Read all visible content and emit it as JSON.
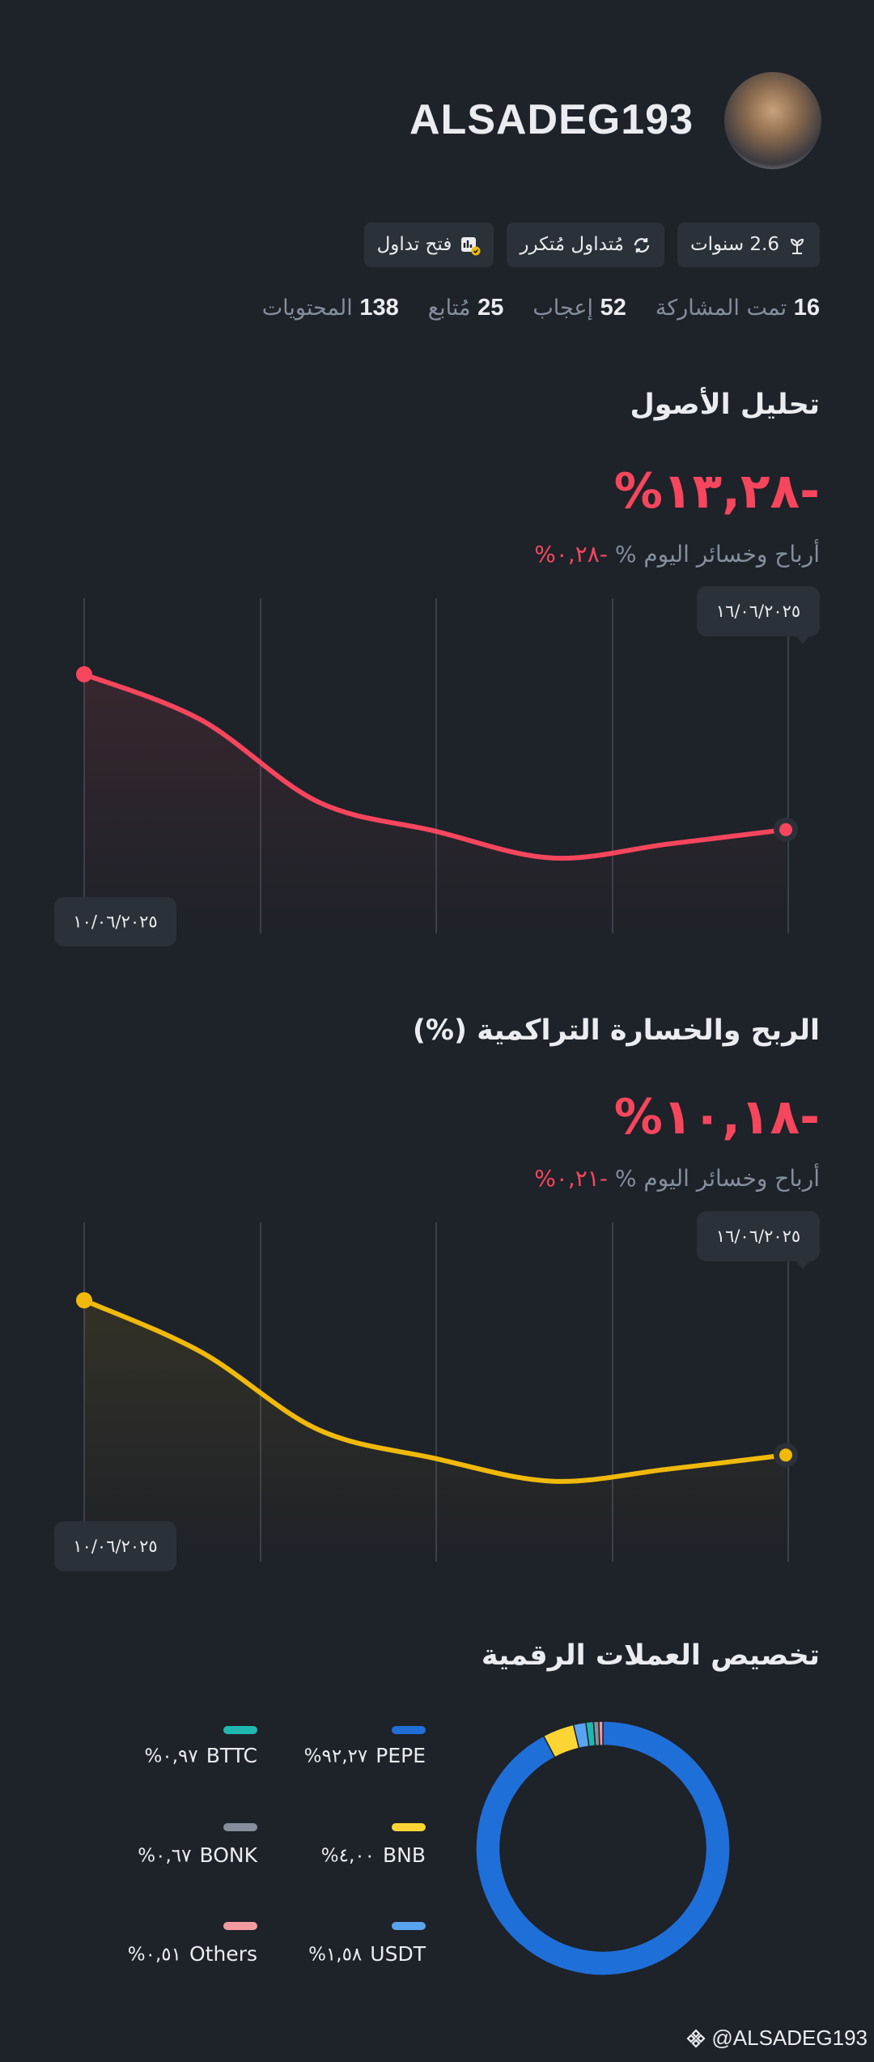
{
  "header": {
    "username": "ALSADEG193",
    "badges": [
      "2.6 سنوات",
      "مُتداول مُتكرر",
      "فتح تداول"
    ],
    "stats": [
      {
        "value": 16,
        "label": "تمت المشاركة"
      },
      {
        "value": 52,
        "label": "إعجاب"
      },
      {
        "value": 25,
        "label": "مُتابع"
      },
      {
        "value": 138,
        "label": "المحتويات"
      }
    ]
  },
  "chart_data": [
    {
      "type": "line",
      "title": "تحليل الأصول",
      "headline": "%١٣,٢٨-",
      "today_label": "أرباح وخسائر اليوم %",
      "today_value": "%٠,٢٨-",
      "categories": [
        "١٠/٠٦/٢٠٢٥",
        null,
        null,
        null,
        null,
        null,
        "١٦/٠٦/٢٠٢٥"
      ],
      "values": [
        0,
        -3.9,
        -10.9,
        -13.4,
        -15.7,
        -14.5,
        -13.28
      ],
      "color": "#f6465d",
      "ylim": [
        -18,
        2
      ]
    },
    {
      "type": "line",
      "title": "الربح والخسارة التراكمية (%)",
      "headline": "%١٠,١٨-",
      "today_label": "أرباح وخسائر اليوم %",
      "today_value": "%٠,٢١-",
      "categories": [
        "١٠/٠٦/٢٠٢٥",
        null,
        null,
        null,
        null,
        null,
        "١٦/٠٦/٢٠٢٥"
      ],
      "values": [
        0,
        -3.4,
        -8.5,
        -10.4,
        -11.9,
        -11.1,
        -10.18
      ],
      "color": "#f0b90b",
      "ylim": [
        -14,
        1.5
      ]
    },
    {
      "type": "pie",
      "title": "تخصيص العملات الرقمية",
      "categories": [
        "PEPE",
        "BNB",
        "USDT",
        "BTTC",
        "BONK",
        "Others"
      ],
      "values": [
        92.27,
        4.0,
        1.58,
        0.97,
        0.67,
        0.51
      ],
      "value_labels": [
        "%٩٢,٢٧",
        "%٤,٠٠",
        "%١,٥٨",
        "%٠,٩٧",
        "%٠,٦٧",
        "%٠,٥١"
      ],
      "colors": [
        "#1f6fd8",
        "#fcd535",
        "#5aa3f0",
        "#1fb8b0",
        "#848e9c",
        "#f59aa0"
      ]
    }
  ],
  "footer": {
    "handle": "@ALSADEG193"
  }
}
